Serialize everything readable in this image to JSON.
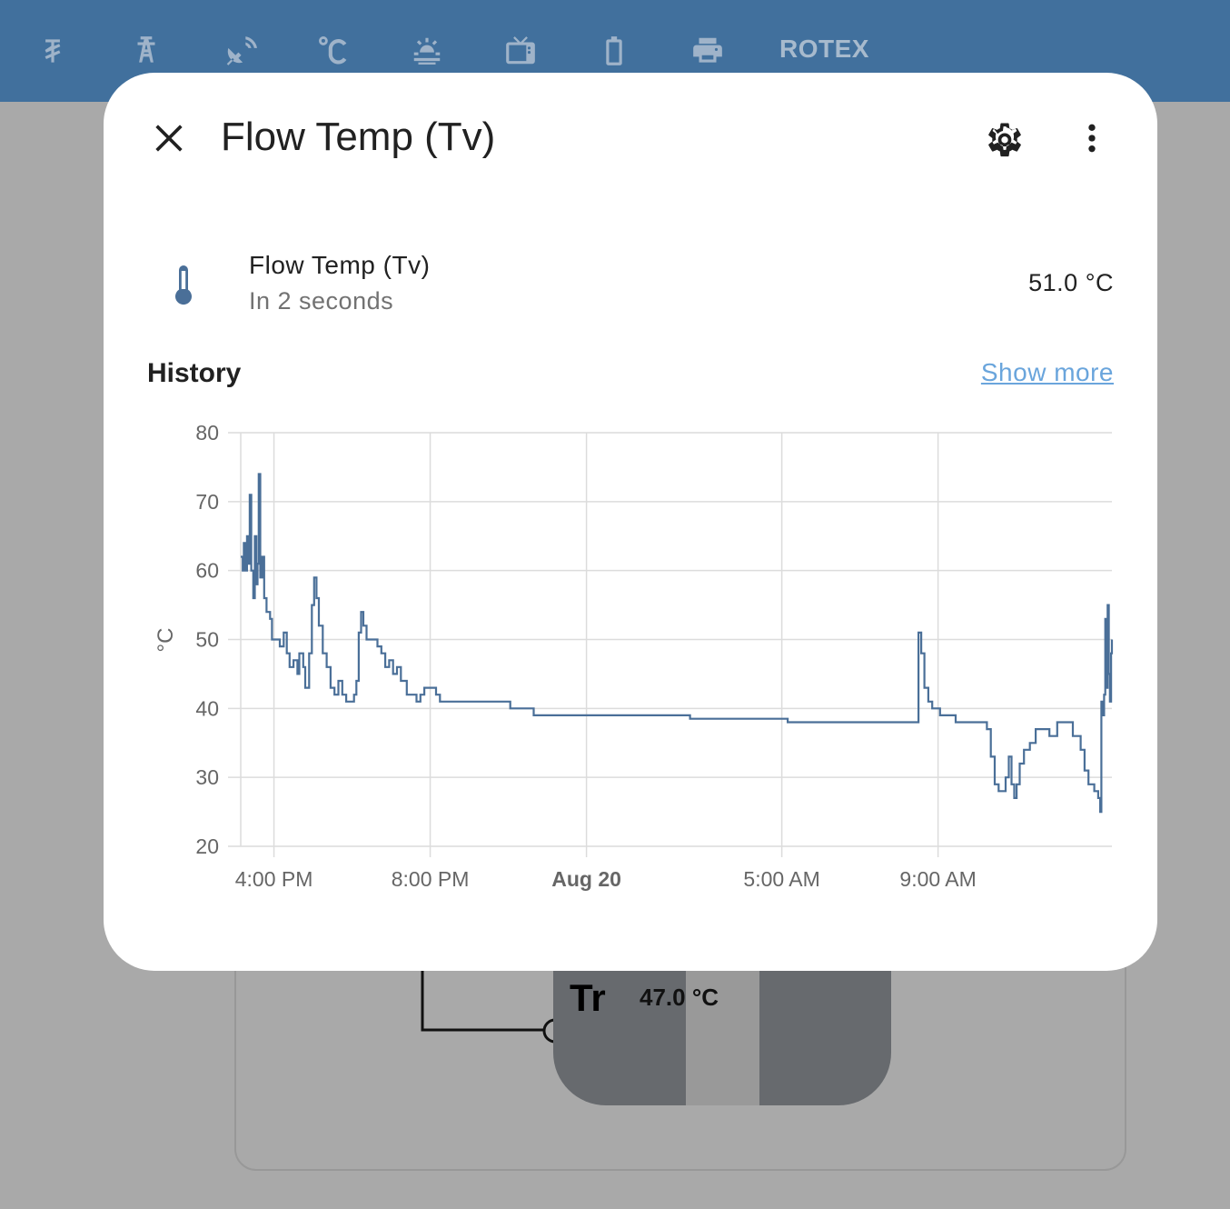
{
  "topbar": {
    "tabs": [
      {
        "icon": "currency-tugrik-icon"
      },
      {
        "icon": "transmission-tower-icon"
      },
      {
        "icon": "satellite-dish-icon"
      },
      {
        "icon": "temperature-celsius-icon"
      },
      {
        "icon": "weather-sunset-icon"
      },
      {
        "icon": "television-icon"
      },
      {
        "icon": "battery-icon"
      },
      {
        "icon": "printer-icon"
      }
    ],
    "text_tab": "ROTEX"
  },
  "background": {
    "sensor_label": "Tr",
    "sensor_value": "47.0 °C"
  },
  "dialog": {
    "title": "Flow Temp (Tv)",
    "entity": {
      "name": "Flow Temp (Tv)",
      "secondary": "In 2 seconds",
      "state": "51.0 °C",
      "icon": "thermometer-icon"
    },
    "history_title": "History",
    "show_more": "Show more"
  },
  "colors": {
    "topbar": "#41709d",
    "line": "#4a6f98",
    "link": "#6aa5dc"
  },
  "chart_data": {
    "type": "line",
    "ylabel": "°C",
    "ylim": [
      20,
      80
    ],
    "yticks": [
      20,
      30,
      40,
      50,
      60,
      70,
      80
    ],
    "x_start_hours": 0,
    "x_end_hours": 22.3,
    "xticks": [
      {
        "label": "4:00 PM",
        "hours": 0.85,
        "bold": false
      },
      {
        "label": "8:00 PM",
        "hours": 4.85,
        "bold": false
      },
      {
        "label": "Aug 20",
        "hours": 8.85,
        "bold": true
      },
      {
        "label": "5:00 AM",
        "hours": 13.85,
        "bold": false
      },
      {
        "label": "9:00 AM",
        "hours": 17.85,
        "bold": false
      }
    ],
    "series": [
      {
        "points": [
          [
            0.0,
            62
          ],
          [
            0.05,
            60
          ],
          [
            0.08,
            64
          ],
          [
            0.12,
            60
          ],
          [
            0.16,
            65
          ],
          [
            0.2,
            61
          ],
          [
            0.23,
            71
          ],
          [
            0.27,
            60
          ],
          [
            0.32,
            56
          ],
          [
            0.36,
            65
          ],
          [
            0.4,
            58
          ],
          [
            0.43,
            61
          ],
          [
            0.46,
            74
          ],
          [
            0.5,
            59
          ],
          [
            0.55,
            62
          ],
          [
            0.6,
            56
          ],
          [
            0.66,
            54
          ],
          [
            0.75,
            53
          ],
          [
            0.8,
            50
          ],
          [
            0.9,
            50
          ],
          [
            1.0,
            49
          ],
          [
            1.1,
            51
          ],
          [
            1.18,
            48
          ],
          [
            1.25,
            46
          ],
          [
            1.35,
            47
          ],
          [
            1.45,
            45
          ],
          [
            1.5,
            48
          ],
          [
            1.6,
            46
          ],
          [
            1.65,
            43
          ],
          [
            1.75,
            48
          ],
          [
            1.82,
            55
          ],
          [
            1.88,
            59
          ],
          [
            1.94,
            56
          ],
          [
            2.0,
            52
          ],
          [
            2.1,
            48
          ],
          [
            2.2,
            46
          ],
          [
            2.3,
            43
          ],
          [
            2.4,
            42
          ],
          [
            2.5,
            44
          ],
          [
            2.6,
            42
          ],
          [
            2.7,
            41
          ],
          [
            2.8,
            41
          ],
          [
            2.9,
            42
          ],
          [
            2.96,
            44
          ],
          [
            3.02,
            51
          ],
          [
            3.08,
            54
          ],
          [
            3.14,
            52
          ],
          [
            3.22,
            50
          ],
          [
            3.35,
            50
          ],
          [
            3.5,
            49
          ],
          [
            3.6,
            48
          ],
          [
            3.7,
            46
          ],
          [
            3.8,
            47
          ],
          [
            3.9,
            45
          ],
          [
            4.0,
            46
          ],
          [
            4.1,
            44
          ],
          [
            4.25,
            42
          ],
          [
            4.4,
            42
          ],
          [
            4.5,
            41
          ],
          [
            4.6,
            42
          ],
          [
            4.7,
            43
          ],
          [
            4.9,
            43
          ],
          [
            5.0,
            42
          ],
          [
            5.1,
            41
          ],
          [
            6.0,
            41
          ],
          [
            6.5,
            41
          ],
          [
            6.9,
            40
          ],
          [
            7.3,
            40
          ],
          [
            7.5,
            39
          ],
          [
            8.0,
            39
          ],
          [
            8.5,
            39
          ],
          [
            9.0,
            39
          ],
          [
            10.0,
            39
          ],
          [
            11.0,
            39
          ],
          [
            11.5,
            38.5
          ],
          [
            12.0,
            38.5
          ],
          [
            13.0,
            38.5
          ],
          [
            14.0,
            38
          ],
          [
            15.0,
            38
          ],
          [
            16.0,
            38
          ],
          [
            17.0,
            38
          ],
          [
            17.3,
            38
          ],
          [
            17.35,
            51
          ],
          [
            17.42,
            48
          ],
          [
            17.5,
            43
          ],
          [
            17.6,
            41
          ],
          [
            17.7,
            40
          ],
          [
            17.9,
            39
          ],
          [
            18.2,
            39
          ],
          [
            18.3,
            38
          ],
          [
            19.0,
            38
          ],
          [
            19.1,
            37
          ],
          [
            19.2,
            33
          ],
          [
            19.3,
            29
          ],
          [
            19.4,
            28
          ],
          [
            19.5,
            28
          ],
          [
            19.58,
            30
          ],
          [
            19.66,
            33
          ],
          [
            19.73,
            29
          ],
          [
            19.8,
            27
          ],
          [
            19.86,
            29
          ],
          [
            19.94,
            32
          ],
          [
            20.05,
            34
          ],
          [
            20.2,
            35
          ],
          [
            20.35,
            37
          ],
          [
            20.55,
            37
          ],
          [
            20.7,
            36
          ],
          [
            20.9,
            38
          ],
          [
            21.2,
            38
          ],
          [
            21.3,
            36
          ],
          [
            21.5,
            34
          ],
          [
            21.6,
            31
          ],
          [
            21.7,
            29
          ],
          [
            21.85,
            28
          ],
          [
            21.95,
            27
          ],
          [
            22.0,
            25
          ],
          [
            22.03,
            41
          ],
          [
            22.07,
            39
          ],
          [
            22.1,
            42
          ],
          [
            22.13,
            53
          ],
          [
            22.16,
            43
          ],
          [
            22.19,
            55
          ],
          [
            22.22,
            45
          ],
          [
            22.25,
            41
          ],
          [
            22.28,
            48
          ],
          [
            22.3,
            50
          ]
        ]
      }
    ],
    "grid": true
  }
}
